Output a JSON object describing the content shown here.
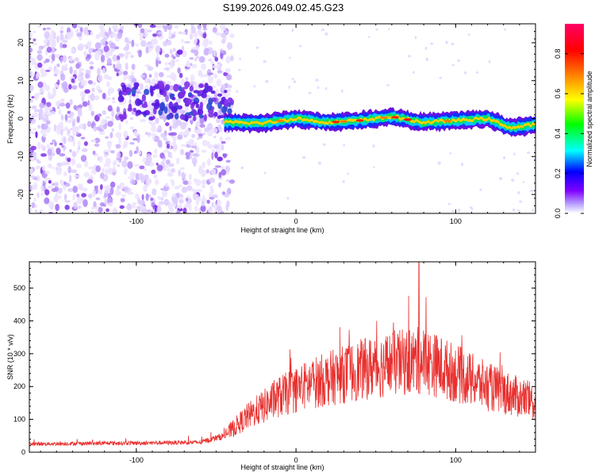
{
  "title": "S199.2026.049.02.45.G23",
  "colors": {
    "snr_line": "#e8302e",
    "background": "#ffffff",
    "frame": "#000000"
  },
  "chart_data": [
    {
      "type": "heatmap",
      "title": "S199.2026.049.02.45.G23",
      "xlabel": "Height of straight line (km)",
      "ylabel": "Frequency (Hz)",
      "xlim": [
        -167,
        150
      ],
      "ylim": [
        -25,
        25
      ],
      "xticks": [
        -100,
        0,
        100
      ],
      "yticks": [
        -20,
        -10,
        0,
        10,
        20
      ],
      "colorbar": {
        "label": "Normalized spectral amplitude",
        "range": [
          0,
          0.95
        ],
        "ticks": [
          0.0,
          0.2,
          0.4,
          0.6,
          0.8
        ],
        "colormap": "rainbow"
      },
      "signal_center_frequency": [
        {
          "x": -45,
          "y": -1.0
        },
        {
          "x": -20,
          "y": -1.2
        },
        {
          "x": 0,
          "y": 0.0
        },
        {
          "x": 20,
          "y": -1.0
        },
        {
          "x": 40,
          "y": -0.5
        },
        {
          "x": 60,
          "y": 0.5
        },
        {
          "x": 80,
          "y": -1.0
        },
        {
          "x": 100,
          "y": -0.5
        },
        {
          "x": 120,
          "y": 0.0
        },
        {
          "x": 135,
          "y": -2.5
        },
        {
          "x": 150,
          "y": -1.5
        }
      ],
      "grid": false
    },
    {
      "type": "line",
      "xlabel": "Height of straight line (km)",
      "ylabel": "SNR (10 * v/v)",
      "xlim": [
        -167,
        150
      ],
      "ylim": [
        0,
        580
      ],
      "xticks": [
        -100,
        0,
        100
      ],
      "yticks": [
        0,
        100,
        200,
        300,
        400,
        500
      ],
      "envelope": [
        {
          "x": -167,
          "y": 25
        },
        {
          "x": -100,
          "y": 28
        },
        {
          "x": -60,
          "y": 30
        },
        {
          "x": -45,
          "y": 50
        },
        {
          "x": -30,
          "y": 110
        },
        {
          "x": -10,
          "y": 170
        },
        {
          "x": 10,
          "y": 210
        },
        {
          "x": 40,
          "y": 250
        },
        {
          "x": 60,
          "y": 270
        },
        {
          "x": 80,
          "y": 280
        },
        {
          "x": 100,
          "y": 240
        },
        {
          "x": 120,
          "y": 200
        },
        {
          "x": 150,
          "y": 150
        }
      ],
      "peak": {
        "x": 77,
        "y": 580
      },
      "grid": false
    }
  ]
}
